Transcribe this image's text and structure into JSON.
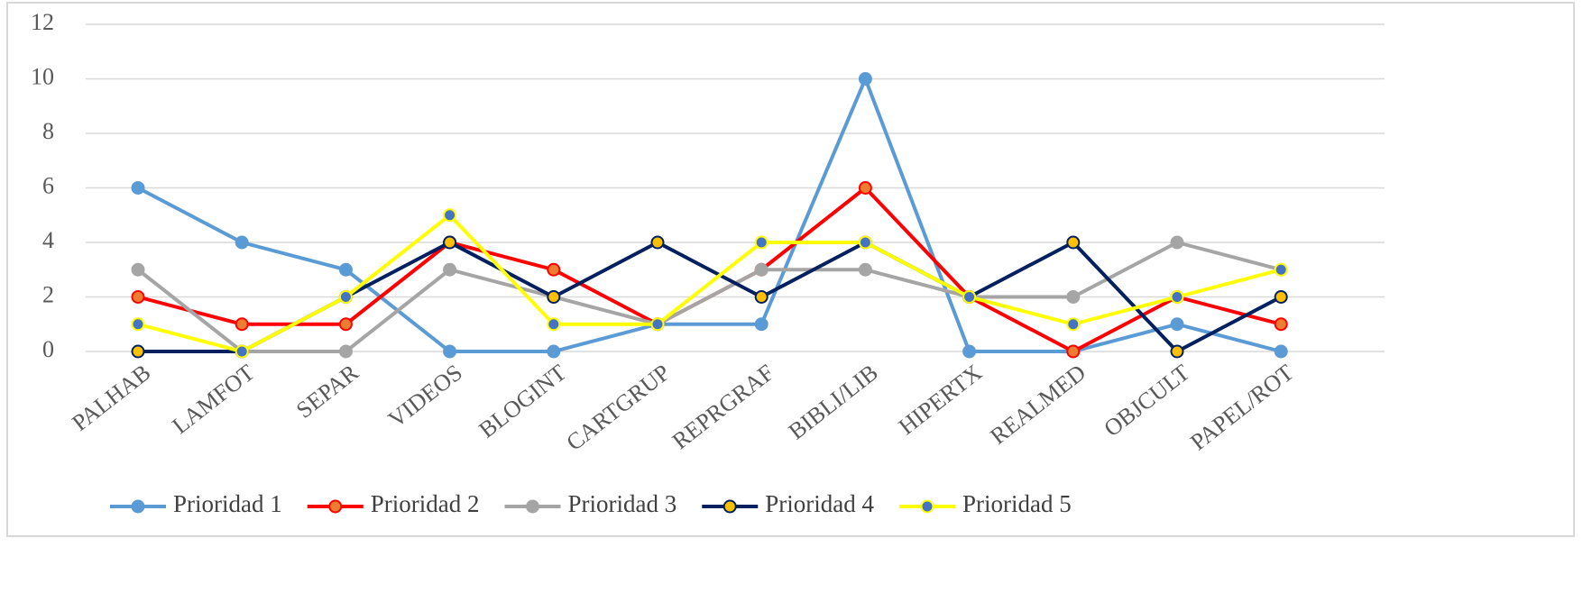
{
  "chart_data": {
    "type": "line",
    "categories": [
      "PALHAB",
      "LAMFOT",
      "SEPAR",
      "VIDEOS",
      "BLOGINT",
      "CARTGRUP",
      "REPRGRAF",
      "BIBLI/LIB",
      "HIPERTX",
      "REALMED",
      "OBJCULT",
      "PAPEL/ROT"
    ],
    "series": [
      {
        "name": "Prioridad 1",
        "color": "#5b9bd5",
        "marker_color": "#5b9bd5",
        "values": [
          6,
          4,
          3,
          0,
          0,
          1,
          1,
          10,
          0,
          0,
          1,
          0
        ]
      },
      {
        "name": "Prioridad 2",
        "color": "#ff0000",
        "marker_color": "#ed7d31",
        "values": [
          2,
          1,
          1,
          4,
          3,
          1,
          3,
          6,
          2,
          0,
          2,
          1
        ]
      },
      {
        "name": "Prioridad 3",
        "color": "#a5a5a5",
        "marker_color": "#a5a5a5",
        "values": [
          3,
          0,
          0,
          3,
          2,
          1,
          3,
          3,
          2,
          2,
          4,
          3
        ]
      },
      {
        "name": "Prioridad 4",
        "color": "#002060",
        "marker_color": "#ffc000",
        "values": [
          0,
          0,
          2,
          4,
          2,
          4,
          2,
          4,
          2,
          4,
          0,
          2
        ]
      },
      {
        "name": "Prioridad 5",
        "color": "#ffff00",
        "marker_color": "#4472c4",
        "values": [
          1,
          0,
          2,
          5,
          1,
          1,
          4,
          4,
          2,
          1,
          2,
          3
        ]
      }
    ],
    "ylim": [
      0,
      12
    ],
    "yticks": [
      0,
      2,
      4,
      6,
      8,
      10,
      12
    ],
    "grid": true,
    "legend": "bottom"
  }
}
